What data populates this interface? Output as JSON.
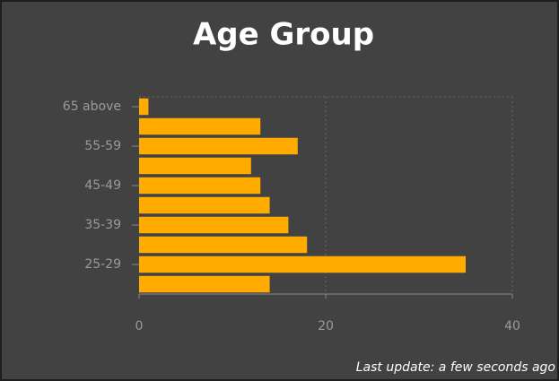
{
  "chart_data": {
    "type": "hbar",
    "title": "Age Group",
    "categories": [
      "65 above",
      null,
      "55-59",
      null,
      "45-49",
      null,
      "35-39",
      null,
      "25-29",
      null
    ],
    "values": [
      1,
      13,
      17,
      12,
      13,
      14,
      16,
      18,
      35,
      14
    ],
    "color": "#ffab00",
    "xlim": [
      0,
      40
    ],
    "xticks": [
      0,
      20,
      40
    ],
    "grid": true,
    "footer": "Last update: a few seconds ago"
  }
}
